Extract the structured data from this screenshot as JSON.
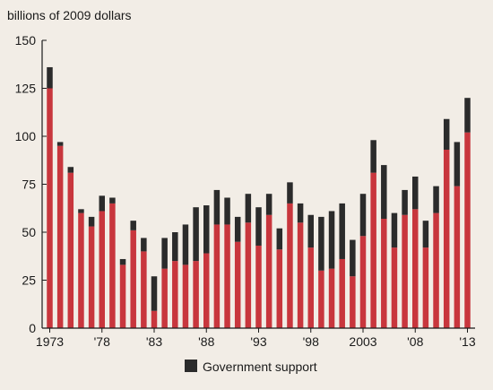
{
  "chart_data": {
    "type": "bar",
    "stacked": true,
    "ylabel": "billions of 2009 dollars",
    "ylim": [
      0,
      150
    ],
    "yticks": [
      0,
      25,
      50,
      75,
      100,
      125,
      150
    ],
    "xticks": [
      {
        "year": 1973,
        "label": "1973"
      },
      {
        "year": 1978,
        "label": "'78"
      },
      {
        "year": 1983,
        "label": "'83"
      },
      {
        "year": 1988,
        "label": "'88"
      },
      {
        "year": 1993,
        "label": "'93"
      },
      {
        "year": 1998,
        "label": "'98"
      },
      {
        "year": 2003,
        "label": "2003"
      },
      {
        "year": 2008,
        "label": "'08"
      },
      {
        "year": 2013,
        "label": "'13"
      }
    ],
    "grid": false,
    "legend_position": "bottom-center",
    "x": [
      1973,
      1974,
      1975,
      1976,
      1977,
      1978,
      1979,
      1980,
      1981,
      1982,
      1983,
      1984,
      1985,
      1986,
      1987,
      1988,
      1989,
      1990,
      1991,
      1992,
      1993,
      1994,
      1995,
      1996,
      1997,
      1998,
      1999,
      2000,
      2001,
      2002,
      2003,
      2004,
      2005,
      2006,
      2007,
      2008,
      2009,
      2010,
      2011,
      2012,
      2013
    ],
    "series": [
      {
        "name": "",
        "color": "#c8363d",
        "values": [
          125,
          95,
          81,
          60,
          53,
          61,
          65,
          33,
          51,
          40,
          9,
          31,
          35,
          33,
          35,
          39,
          54,
          54,
          45,
          55,
          43,
          59,
          41,
          65,
          55,
          42,
          30,
          31,
          36,
          27,
          48,
          81,
          57,
          42,
          59,
          62,
          42,
          60,
          93,
          74,
          102
        ]
      },
      {
        "name": "Government support",
        "color": "#2b2b2b",
        "values": [
          11,
          2,
          3,
          2,
          5,
          8,
          3,
          3,
          5,
          7,
          18,
          16,
          15,
          21,
          28,
          25,
          18,
          14,
          13,
          15,
          20,
          11,
          11,
          11,
          10,
          17,
          28,
          30,
          29,
          19,
          22,
          17,
          28,
          18,
          13,
          17,
          14,
          14,
          16,
          23,
          18
        ]
      }
    ]
  }
}
